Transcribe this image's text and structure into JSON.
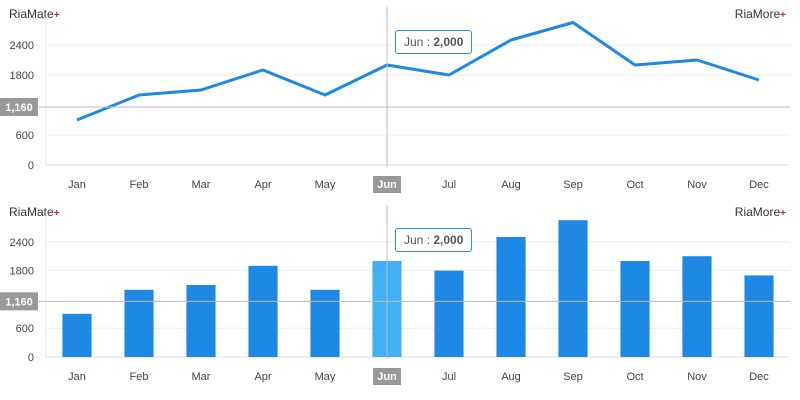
{
  "brand": {
    "left": "RiaMate",
    "right": "RiaMore",
    "plus": "+"
  },
  "crosshair": {
    "category": "Jun",
    "value": 2000,
    "value_label": "2,000",
    "y_value": 1160,
    "y_label": "1,160"
  },
  "colors": {
    "series": "#1e88e5",
    "highlight": "#42b0f5",
    "grid": "#eeeeee",
    "crosshair": "#bbbbbb",
    "marker_bg": "#999999"
  },
  "chart_data": [
    {
      "type": "line",
      "categories": [
        "Jan",
        "Feb",
        "Mar",
        "Apr",
        "May",
        "Jun",
        "Jul",
        "Aug",
        "Sep",
        "Oct",
        "Nov",
        "Dec"
      ],
      "values": [
        900,
        1400,
        1500,
        1900,
        1400,
        2000,
        1800,
        2500,
        2850,
        2000,
        2100,
        1700
      ],
      "yticks": [
        0,
        600,
        1800,
        2400
      ],
      "ylim": [
        0,
        3000
      ],
      "grid": true
    },
    {
      "type": "bar",
      "categories": [
        "Jan",
        "Feb",
        "Mar",
        "Apr",
        "May",
        "Jun",
        "Jul",
        "Aug",
        "Sep",
        "Oct",
        "Nov",
        "Dec"
      ],
      "values": [
        900,
        1400,
        1500,
        1900,
        1400,
        2000,
        1800,
        2500,
        2850,
        2000,
        2100,
        1700
      ],
      "yticks": [
        0,
        600,
        1800,
        2400
      ],
      "ylim": [
        0,
        3000
      ],
      "grid": true,
      "highlight": "Jun"
    }
  ]
}
